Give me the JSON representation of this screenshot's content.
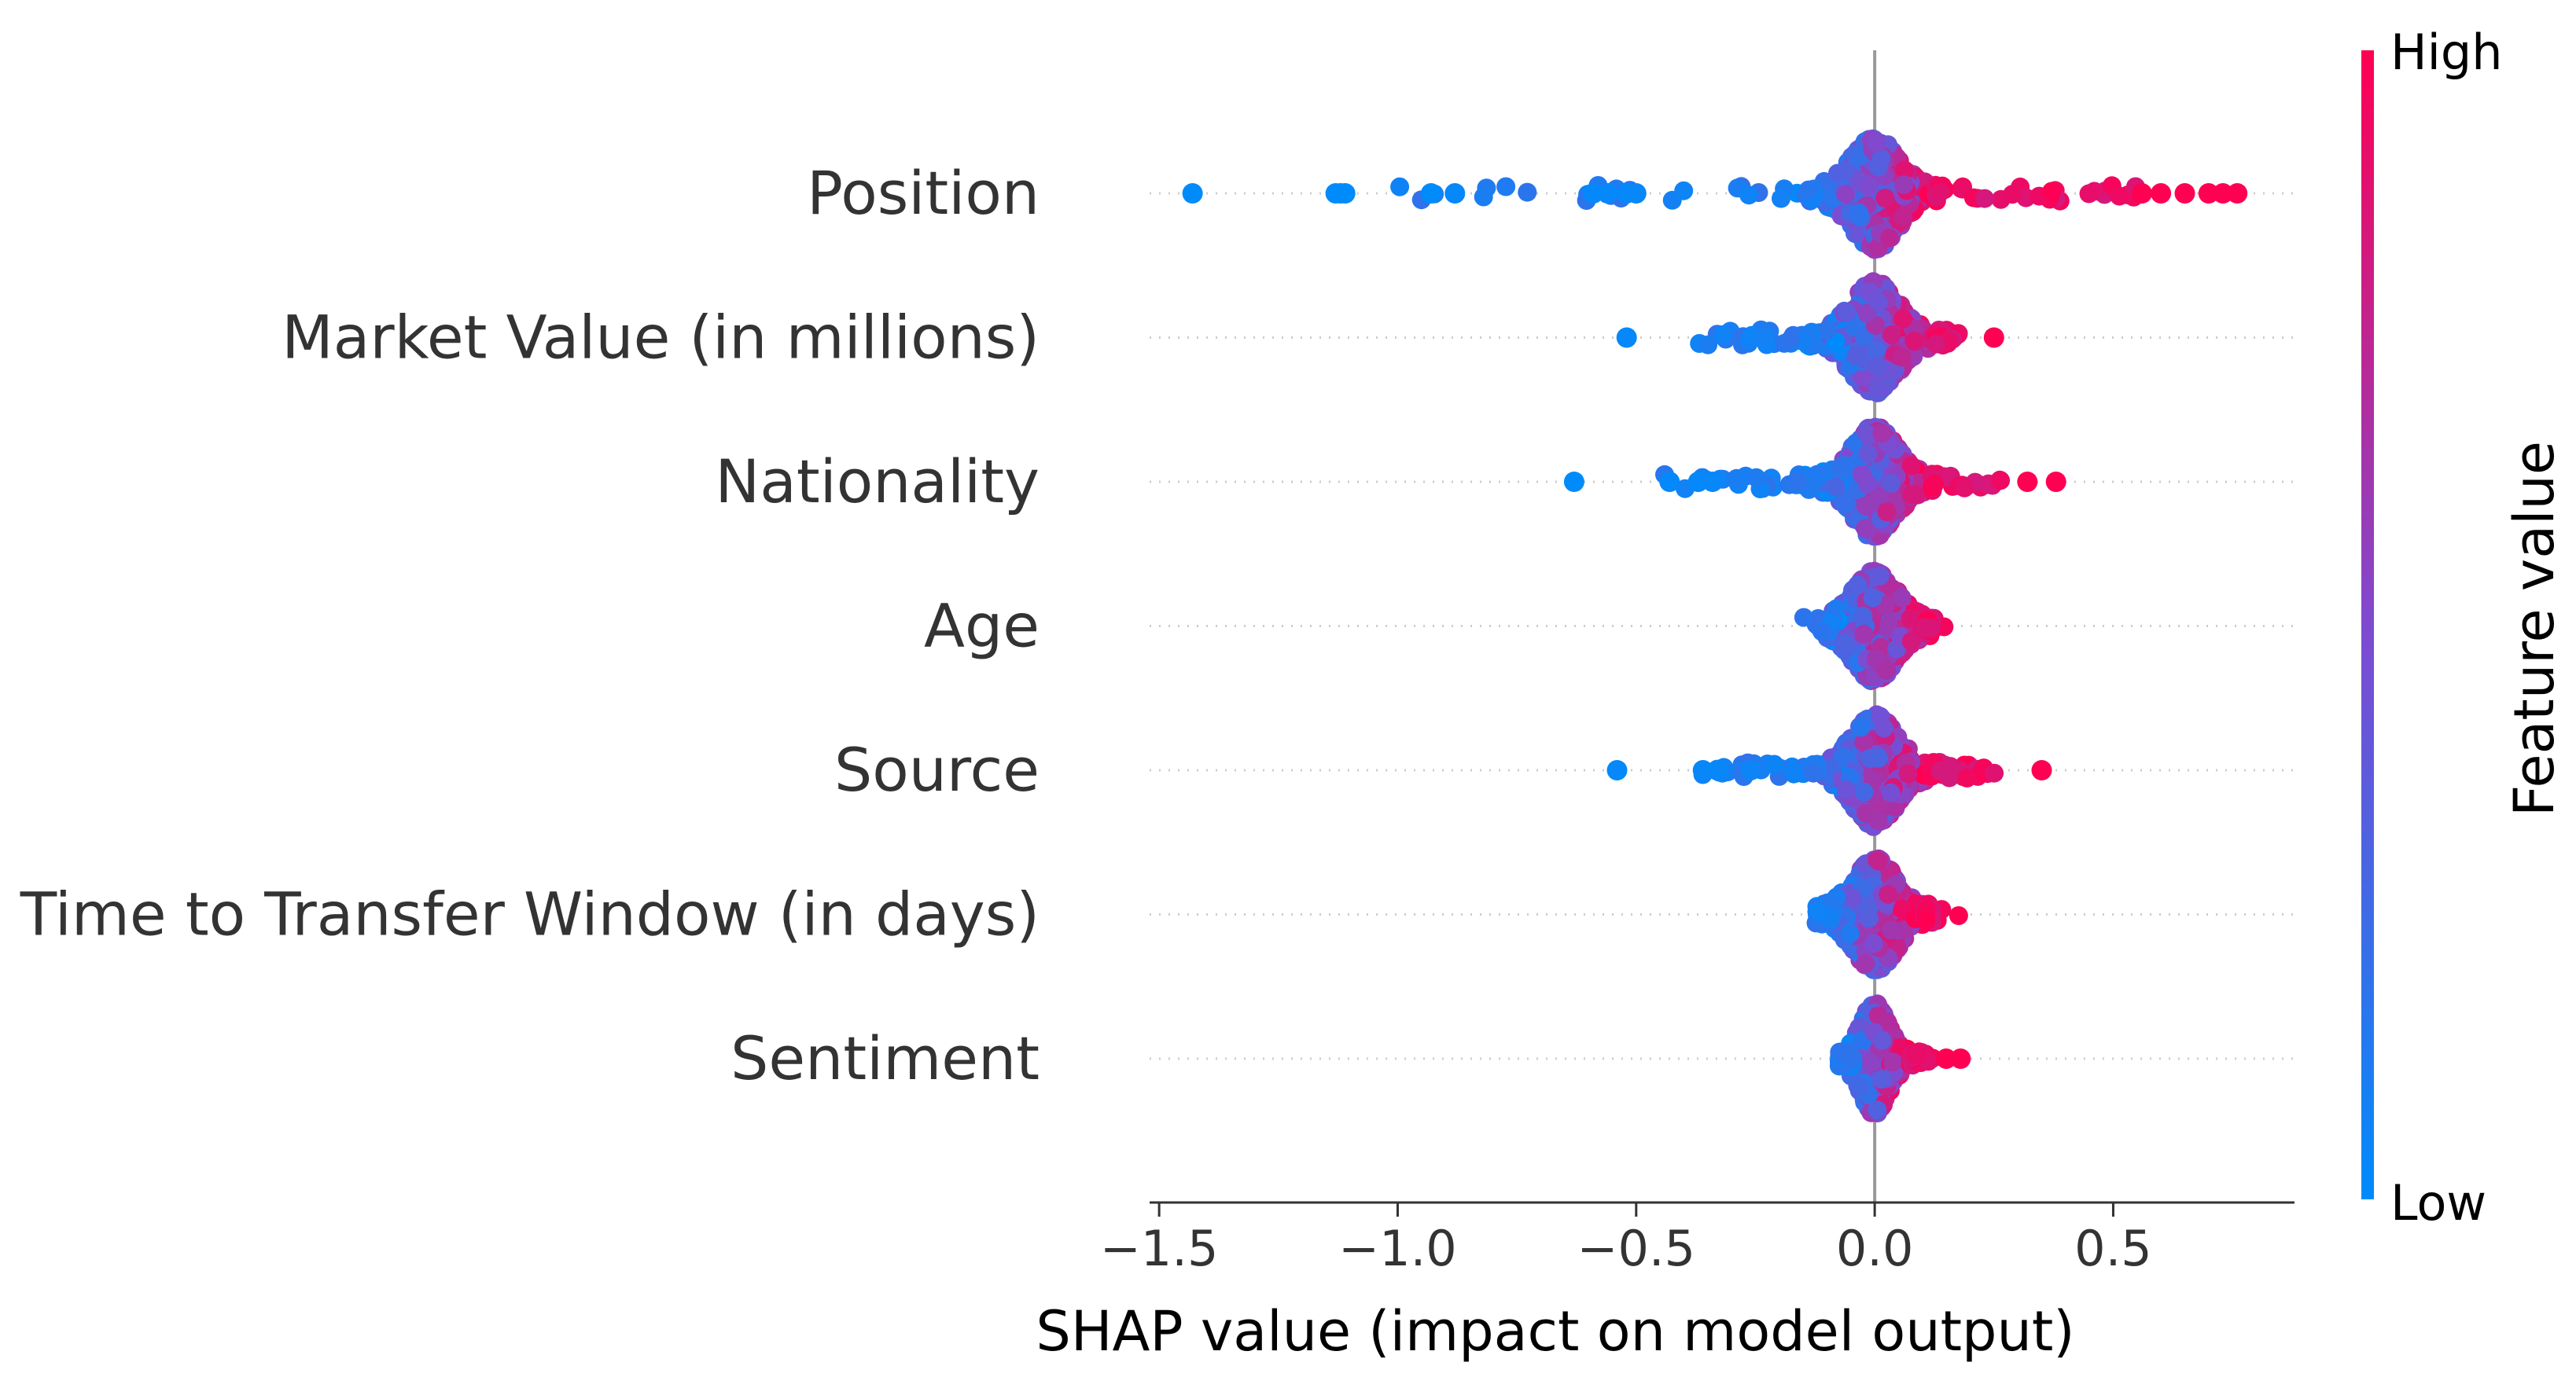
{
  "chart_data": {
    "type": "scatter",
    "subtype": "shap-beeswarm",
    "title": "",
    "xlabel": "SHAP value (impact on model output)",
    "ylabel": "",
    "xlim": [
      -1.52,
      0.88
    ],
    "xticks": [
      -1.5,
      -1.0,
      -0.5,
      0.0,
      0.5
    ],
    "xtick_labels": [
      "−1.5",
      "−1.0",
      "−0.5",
      "0.0",
      "0.5"
    ],
    "features": [
      {
        "name": "Position",
        "min": -1.43,
        "max": 0.76,
        "spread": 0.085,
        "outliers": [
          {
            "x": -1.43,
            "v": 0.0
          },
          {
            "x": -1.13,
            "v": 0.0
          },
          {
            "x": -1.12,
            "v": 0.0
          },
          {
            "x": -1.11,
            "v": 0.0
          },
          {
            "x": -0.93,
            "v": 0.0
          },
          {
            "x": -0.88,
            "v": 0.02
          },
          {
            "x": -0.59,
            "v": 0.02
          },
          {
            "x": -0.56,
            "v": 0.02
          },
          {
            "x": -0.52,
            "v": 0.02
          },
          {
            "x": -0.5,
            "v": 0.03
          },
          {
            "x": 0.56,
            "v": 1.0
          },
          {
            "x": 0.6,
            "v": 1.0
          },
          {
            "x": 0.65,
            "v": 1.0
          },
          {
            "x": 0.7,
            "v": 1.0
          },
          {
            "x": 0.73,
            "v": 1.0
          },
          {
            "x": 0.76,
            "v": 1.0
          }
        ]
      },
      {
        "name": "Market Value (in millions)",
        "min": -0.52,
        "max": 0.25,
        "spread": 0.085,
        "outliers": [
          {
            "x": -0.52,
            "v": 0.02
          },
          {
            "x": -0.23,
            "v": 0.08
          },
          {
            "x": 0.25,
            "v": 1.0
          }
        ]
      },
      {
        "name": "Nationality",
        "min": -0.63,
        "max": 0.38,
        "spread": 0.08,
        "outliers": [
          {
            "x": -0.63,
            "v": 0.0
          },
          {
            "x": -0.43,
            "v": 0.02
          },
          {
            "x": -0.37,
            "v": 0.02
          },
          {
            "x": -0.34,
            "v": 0.03
          },
          {
            "x": 0.32,
            "v": 1.0
          },
          {
            "x": 0.38,
            "v": 1.0
          }
        ]
      },
      {
        "name": "Age",
        "min": -0.12,
        "max": 0.13,
        "spread": 0.08,
        "outliers": []
      },
      {
        "name": "Source",
        "min": -0.54,
        "max": 0.35,
        "spread": 0.08,
        "outliers": [
          {
            "x": -0.54,
            "v": 0.02
          },
          {
            "x": -0.36,
            "v": 0.03
          },
          {
            "x": -0.33,
            "v": 0.03
          },
          {
            "x": -0.26,
            "v": 0.05
          },
          {
            "x": 0.35,
            "v": 1.0
          }
        ]
      },
      {
        "name": "Time to Transfer Window (in days)",
        "min": -0.12,
        "max": 0.14,
        "spread": 0.08,
        "outliers": []
      },
      {
        "name": "Sentiment",
        "min": -0.06,
        "max": 0.18,
        "spread": 0.05,
        "outliers": [
          {
            "x": 0.18,
            "v": 1.0
          },
          {
            "x": 0.15,
            "v": 1.0
          }
        ]
      }
    ],
    "colorbar": {
      "title": "Feature value",
      "high_label": "High",
      "low_label": "Low",
      "low_color": "#008bfb",
      "high_color": "#ff0052"
    }
  }
}
